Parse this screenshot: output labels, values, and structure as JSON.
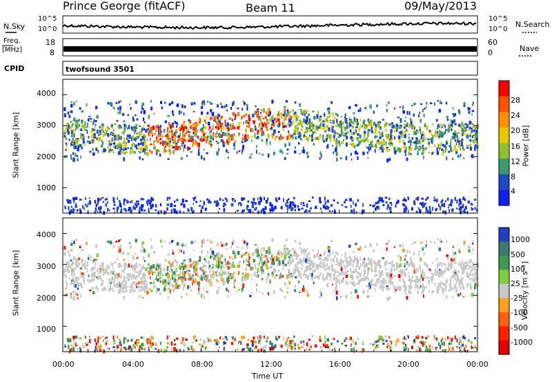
{
  "header": {
    "station": "Prince George (fitACF)",
    "beam": "Beam 11",
    "date": "09/May/2013"
  },
  "noise_panel": {
    "left_label": "N.Sky",
    "left_ticks": [
      "10^5",
      "10^0"
    ],
    "right_ticks": [
      "10^5",
      "10^0"
    ],
    "right_label": "N.Search"
  },
  "freq_panel": {
    "left_label_1": "Freq.",
    "left_label_2": "[MHz]",
    "left_ticks": [
      "18",
      "8"
    ],
    "right_ticks": [
      "60",
      "0"
    ],
    "right_label": "Nave"
  },
  "cpid_panel": {
    "label": "CPID",
    "value": "twofsound 3501"
  },
  "chart_data": [
    {
      "type": "heatmap",
      "title": "Power",
      "ylabel": "Slant Range [km]",
      "yticks": [
        "4000",
        "3000",
        "2000",
        "1000"
      ],
      "ylim": [
        180,
        4500
      ],
      "xlim": [
        0,
        24
      ],
      "colorbar_label": "Power [dB]",
      "colorbar_ticks": [
        "28",
        "24",
        "20",
        "16",
        "12",
        "8",
        "4"
      ],
      "colorbar_colors": [
        "#ff0000",
        "#ff5000",
        "#ff9000",
        "#e8c800",
        "#90c030",
        "#3c9a70",
        "#2048c0",
        "#1020f0"
      ]
    },
    {
      "type": "heatmap",
      "title": "Velocity",
      "ylabel": "Slant Range [km]",
      "yticks": [
        "4000",
        "3000",
        "2000",
        "1000"
      ],
      "ylim": [
        180,
        4500
      ],
      "xlim": [
        0,
        24
      ],
      "xlabel": "Time UT",
      "xticks": [
        "00:00",
        "04:00",
        "08:00",
        "12:00",
        "16:00",
        "20:00",
        "00:00"
      ],
      "colorbar_label": "Velocity [m s⁻¹]",
      "colorbar_ticks": [
        "1000",
        "500",
        "100",
        "25",
        "-25",
        "-100",
        "-500",
        "-1000"
      ],
      "colorbar_colors": [
        "#2040c0",
        "#3c7a70",
        "#3c9a50",
        "#7cd040",
        "#c8c8c8",
        "#ffa020",
        "#ff6010",
        "#ff2000",
        "#e00000"
      ]
    }
  ]
}
